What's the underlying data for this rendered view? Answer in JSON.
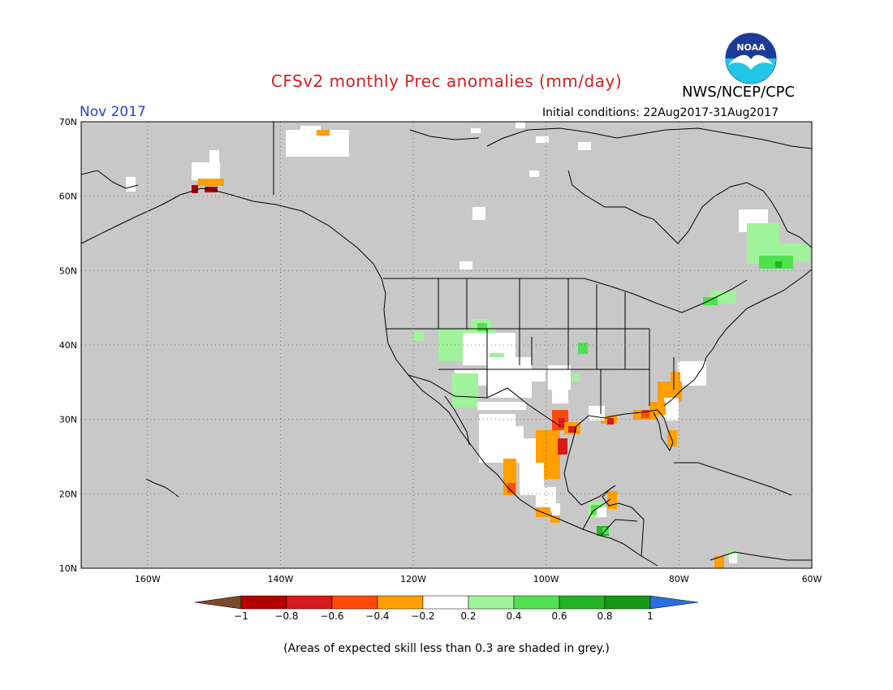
{
  "title": "CFSv2 monthly Prec anomalies (mm/day)",
  "organization": "NWS/NCEP/CPC",
  "logo_text": "NOAA",
  "valid_month": "Nov 2017",
  "initial_conditions": "Initial conditions: 22Aug2017-31Aug2017",
  "footnote": "(Areas of expected skill less than 0.3 are shaded in grey.)",
  "map": {
    "lon_range": [
      -170,
      -60
    ],
    "lat_range": [
      10,
      70
    ],
    "lat_ticks": [
      "10N",
      "20N",
      "30N",
      "40N",
      "50N",
      "60N",
      "70N"
    ],
    "lon_ticks": [
      "160W",
      "140W",
      "120W",
      "100W",
      "80W",
      "60W"
    ],
    "background_color": "#c8c8c8",
    "grid": "dotted"
  },
  "colorbar": {
    "labels": [
      "−1",
      "−0.8",
      "−0.6",
      "−0.4",
      "−0.2",
      "0.2",
      "0.4",
      "0.6",
      "0.8",
      "1"
    ],
    "colors": [
      "#7a4a2a",
      "#b40000",
      "#d81a1a",
      "#ff4a0a",
      "#ff9f00",
      "#ffffff",
      "#9ff39b",
      "#50e050",
      "#22b422",
      "#169816",
      "#2a6fe0"
    ]
  },
  "anomaly_categories": {
    "white": "#ffffff",
    "light_green": "#9ff39b",
    "green": "#50e050",
    "dark_green": "#22b422",
    "orange": "#ff9f00",
    "red_orange": "#ff4a0a",
    "red": "#d81a1a",
    "dark_red": "#b40000"
  }
}
